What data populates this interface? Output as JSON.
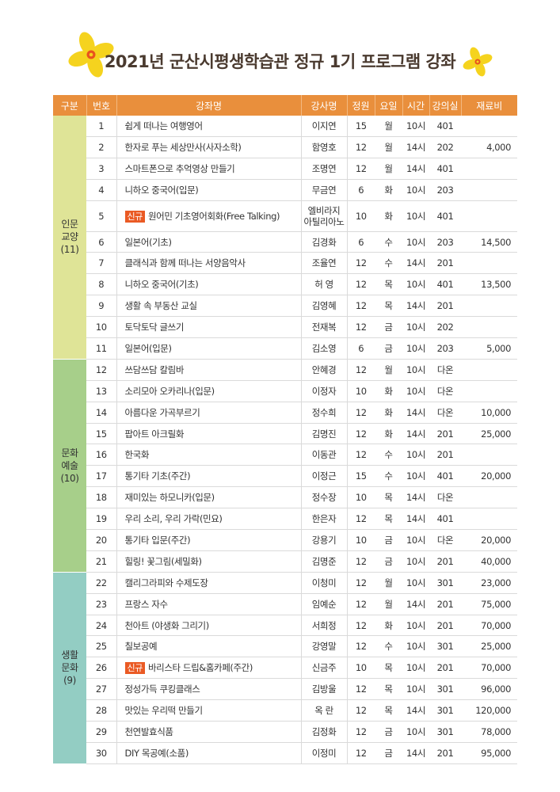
{
  "title": "2021년 군산시평생학습관 정규 1기 프로그램 강좌",
  "colors": {
    "header_bg": "#e98f3c",
    "badge": "#ea5a24",
    "cat_colors": [
      "#dfe497",
      "#a7cf8a",
      "#93cdc3"
    ],
    "flower": "#f5d31e"
  },
  "headers": [
    "구분",
    "번호",
    "강좌명",
    "강사명",
    "정원",
    "요일",
    "시간",
    "강의실",
    "재료비"
  ],
  "categories": [
    {
      "name1": "인문",
      "name2": "교양",
      "count": "(11)"
    },
    {
      "name1": "문화",
      "name2": "예술",
      "count": "(10)"
    },
    {
      "name1": "생활",
      "name2": "문화",
      "count": "(9)"
    }
  ],
  "rows": [
    {
      "no": "1",
      "badge": "",
      "course": "쉽게 떠나는 여행영어",
      "inst": "이지연",
      "cap": "15",
      "day": "월",
      "time": "10시",
      "room": "401",
      "fee": ""
    },
    {
      "no": "2",
      "badge": "",
      "course": "한자로 푸는 세상만사(사자소학)",
      "inst": "함영호",
      "cap": "12",
      "day": "월",
      "time": "14시",
      "room": "202",
      "fee": "4,000"
    },
    {
      "no": "3",
      "badge": "",
      "course": "스마트폰으로 추억영상 만들기",
      "inst": "조명연",
      "cap": "12",
      "day": "월",
      "time": "14시",
      "room": "401",
      "fee": ""
    },
    {
      "no": "4",
      "badge": "",
      "course": "니하오 중국어(입문)",
      "inst": "무금연",
      "cap": "6",
      "day": "화",
      "time": "10시",
      "room": "203",
      "fee": ""
    },
    {
      "no": "5",
      "badge": "신규",
      "course": "원어민 기초영어회화(Free Talking)",
      "inst": "엘비라지",
      "inst2": "아틸리아노",
      "cap": "10",
      "day": "화",
      "time": "10시",
      "room": "401",
      "fee": ""
    },
    {
      "no": "6",
      "badge": "",
      "course": "일본어(기초)",
      "inst": "김경화",
      "cap": "6",
      "day": "수",
      "time": "10시",
      "room": "203",
      "fee": "14,500"
    },
    {
      "no": "7",
      "badge": "",
      "course": "클래식과 함께 떠나는 서양음악사",
      "inst": "조율연",
      "cap": "12",
      "day": "수",
      "time": "14시",
      "room": "201",
      "fee": ""
    },
    {
      "no": "8",
      "badge": "",
      "course": "니하오 중국어(기초)",
      "inst": "허 영",
      "cap": "12",
      "day": "목",
      "time": "10시",
      "room": "401",
      "fee": "13,500"
    },
    {
      "no": "9",
      "badge": "",
      "course": "생활 속 부동산 교실",
      "inst": "김영혜",
      "cap": "12",
      "day": "목",
      "time": "14시",
      "room": "201",
      "fee": ""
    },
    {
      "no": "10",
      "badge": "",
      "course": "토닥토닥 글쓰기",
      "inst": "전재복",
      "cap": "12",
      "day": "금",
      "time": "10시",
      "room": "202",
      "fee": ""
    },
    {
      "no": "11",
      "badge": "",
      "course": "일본어(입문)",
      "inst": "김소영",
      "cap": "6",
      "day": "금",
      "time": "10시",
      "room": "203",
      "fee": "5,000"
    },
    {
      "no": "12",
      "badge": "",
      "course": "쓰담쓰담 칼림바",
      "inst": "안혜경",
      "cap": "12",
      "day": "월",
      "time": "10시",
      "room": "다온",
      "fee": ""
    },
    {
      "no": "13",
      "badge": "",
      "course": "소리모아 오카리나(입문)",
      "inst": "이정자",
      "cap": "10",
      "day": "화",
      "time": "10시",
      "room": "다온",
      "fee": ""
    },
    {
      "no": "14",
      "badge": "",
      "course": "아름다운 가곡부르기",
      "inst": "정수희",
      "cap": "12",
      "day": "화",
      "time": "14시",
      "room": "다온",
      "fee": "10,000"
    },
    {
      "no": "15",
      "badge": "",
      "course": "팝아트 아크릴화",
      "inst": "김명진",
      "cap": "12",
      "day": "화",
      "time": "14시",
      "room": "201",
      "fee": "25,000"
    },
    {
      "no": "16",
      "badge": "",
      "course": "한국화",
      "inst": "이동관",
      "cap": "12",
      "day": "수",
      "time": "10시",
      "room": "201",
      "fee": ""
    },
    {
      "no": "17",
      "badge": "",
      "course": "통기타 기초(주간)",
      "inst": "이정근",
      "cap": "15",
      "day": "수",
      "time": "10시",
      "room": "401",
      "fee": "20,000"
    },
    {
      "no": "18",
      "badge": "",
      "course": "재미있는 하모니카(입문)",
      "inst": "정수장",
      "cap": "10",
      "day": "목",
      "time": "14시",
      "room": "다온",
      "fee": ""
    },
    {
      "no": "19",
      "badge": "",
      "course": "우리 소리, 우리 가락(민요)",
      "inst": "한은자",
      "cap": "12",
      "day": "목",
      "time": "14시",
      "room": "401",
      "fee": ""
    },
    {
      "no": "20",
      "badge": "",
      "course": "통기타 입문(주간)",
      "inst": "강용기",
      "cap": "10",
      "day": "금",
      "time": "10시",
      "room": "다온",
      "fee": "20,000"
    },
    {
      "no": "21",
      "badge": "",
      "course": "힐링! 꽃그림(세밀화)",
      "inst": "김명준",
      "cap": "12",
      "day": "금",
      "time": "10시",
      "room": "201",
      "fee": "40,000"
    },
    {
      "no": "22",
      "badge": "",
      "course": "캘리그라피와 수제도장",
      "inst": "이청미",
      "cap": "12",
      "day": "월",
      "time": "10시",
      "room": "301",
      "fee": "23,000"
    },
    {
      "no": "23",
      "badge": "",
      "course": "프랑스 자수",
      "inst": "임예순",
      "cap": "12",
      "day": "월",
      "time": "14시",
      "room": "201",
      "fee": "75,000"
    },
    {
      "no": "24",
      "badge": "",
      "course": "천아트 (야생화 그리기)",
      "inst": "서희정",
      "cap": "12",
      "day": "화",
      "time": "10시",
      "room": "201",
      "fee": "70,000"
    },
    {
      "no": "25",
      "badge": "",
      "course": "칠보공예",
      "inst": "강영말",
      "cap": "12",
      "day": "수",
      "time": "10시",
      "room": "301",
      "fee": "25,000"
    },
    {
      "no": "26",
      "badge": "신규",
      "course": "바리스타 드립&홈카페(주간)",
      "inst": "신금주",
      "cap": "10",
      "day": "목",
      "time": "10시",
      "room": "201",
      "fee": "70,000"
    },
    {
      "no": "27",
      "badge": "",
      "course": "정성가득 쿠킹클래스",
      "inst": "김방울",
      "cap": "12",
      "day": "목",
      "time": "10시",
      "room": "301",
      "fee": "96,000"
    },
    {
      "no": "28",
      "badge": "",
      "course": "맛있는 우리떡 만들기",
      "inst": "옥 란",
      "cap": "12",
      "day": "목",
      "time": "14시",
      "room": "301",
      "fee": "120,000"
    },
    {
      "no": "29",
      "badge": "",
      "course": "천연발효식품",
      "inst": "김정화",
      "cap": "12",
      "day": "금",
      "time": "10시",
      "room": "301",
      "fee": "78,000"
    },
    {
      "no": "30",
      "badge": "",
      "course": "DIY 목공예(소품)",
      "inst": "이정미",
      "cap": "12",
      "day": "금",
      "time": "14시",
      "room": "201",
      "fee": "95,000"
    }
  ]
}
